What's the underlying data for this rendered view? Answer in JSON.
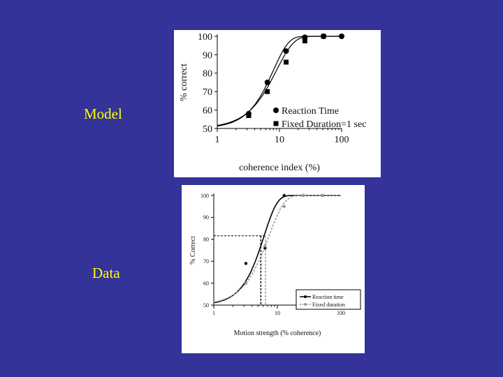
{
  "slide": {
    "background": "#333399",
    "label_color": "#ffff00",
    "model_label": "Model",
    "data_label": "Data"
  },
  "chart_data": [
    {
      "id": "model",
      "type": "scatter",
      "xscale": "log",
      "xlim": [
        1,
        100
      ],
      "ylim": [
        50,
        100
      ],
      "xticks": [
        1,
        10,
        100
      ],
      "xticklabels": [
        "1",
        "10",
        "100"
      ],
      "yticks": [
        50,
        60,
        70,
        80,
        90,
        100
      ],
      "yticklabels": [
        "50",
        "60",
        "70",
        "80",
        "90",
        "100"
      ],
      "xlabel": "coherence index (%)",
      "ylabel": "% correct",
      "legend": {
        "placement": "bottom-right"
      },
      "series": [
        {
          "name": "Reaction Time",
          "marker": "circle",
          "color": "#000000",
          "x": [
            3.2,
            6.4,
            12.8,
            25.6,
            51.2,
            100
          ],
          "y": [
            58,
            75,
            92,
            99.5,
            100,
            100
          ]
        },
        {
          "name": "Fixed Duration=1 sec",
          "marker": "square",
          "color": "#000000",
          "x": [
            3.2,
            6.4,
            12.8,
            25.6,
            51.2
          ],
          "y": [
            57,
            70,
            86,
            97.5,
            100
          ]
        }
      ]
    },
    {
      "id": "data",
      "type": "scatter",
      "xscale": "log",
      "xlim": [
        1,
        100
      ],
      "ylim": [
        50,
        100
      ],
      "xticks": [
        1,
        10,
        100
      ],
      "xticklabels": [
        "1",
        "10",
        "100"
      ],
      "yticks": [
        50,
        60,
        70,
        80,
        90,
        100
      ],
      "yticklabels": [
        "50",
        "60",
        "70",
        "80",
        "90",
        "100"
      ],
      "xlabel": "Motion strength (% coherence)",
      "ylabel": "% Correct",
      "legend": {
        "placement": "bottom-right"
      },
      "threshold_y": 81.6,
      "series": [
        {
          "name": "Reaction time",
          "marker": "dot",
          "color": "#000000",
          "x": [
            3.2,
            6.4,
            12.8,
            25.6,
            51.2
          ],
          "y": [
            69,
            76,
            100,
            100,
            100
          ],
          "threshold_x": 5.5
        },
        {
          "name": "Fixed duration",
          "marker": "dot",
          "color": "#999999",
          "x": [
            3.2,
            6.4,
            12.8,
            25.6,
            51.2
          ],
          "y": [
            60,
            77,
            95,
            100,
            100
          ],
          "threshold_x": 6.5
        }
      ]
    }
  ]
}
